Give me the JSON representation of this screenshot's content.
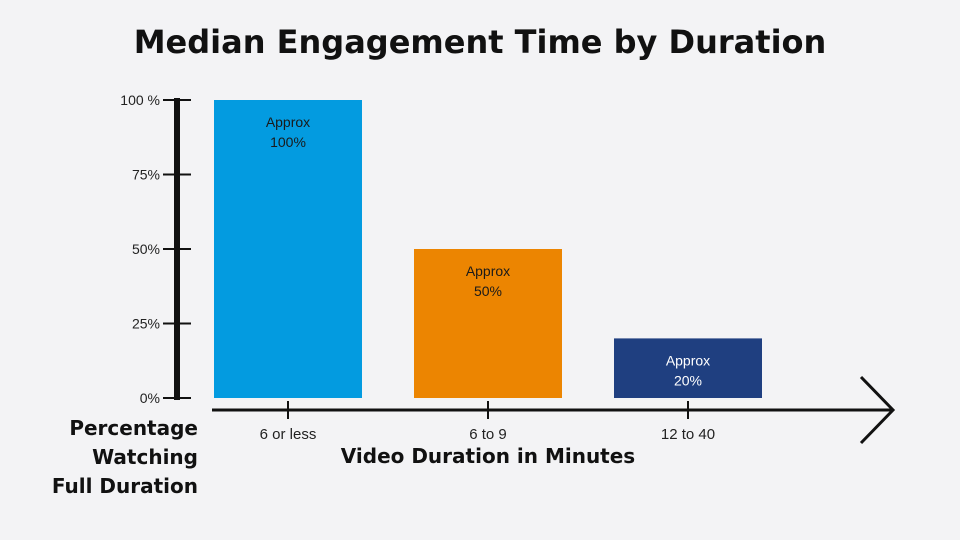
{
  "chart_data": {
    "type": "bar",
    "title": "Median Engagement Time by Duration",
    "xlabel": "Video Duration in  Minutes",
    "ylabel_lines": [
      "Percentage",
      "Watching",
      "Full Duration"
    ],
    "categories": [
      "6 or less",
      "6 to 9",
      "12 to 40"
    ],
    "values": [
      100,
      50,
      20
    ],
    "ylim": [
      0,
      100
    ],
    "yticks": [
      0,
      25,
      50,
      75,
      100
    ],
    "ytick_labels": [
      "0%",
      "25%",
      "50%",
      "75%",
      "100 %"
    ],
    "bar_labels": [
      [
        "Approx",
        "100%"
      ],
      [
        "Approx",
        "50%"
      ],
      [
        "Approx",
        "20%"
      ]
    ],
    "bar_colors": [
      "#039be0",
      "#ec8501",
      "#1f3f80"
    ],
    "bar_label_colors": [
      "#1a1a1a",
      "#1a1a1a",
      "#ffffff"
    ],
    "grid": false,
    "legend": "none"
  },
  "colors": {
    "background": "#f3f3f5",
    "axis": "#111111"
  }
}
